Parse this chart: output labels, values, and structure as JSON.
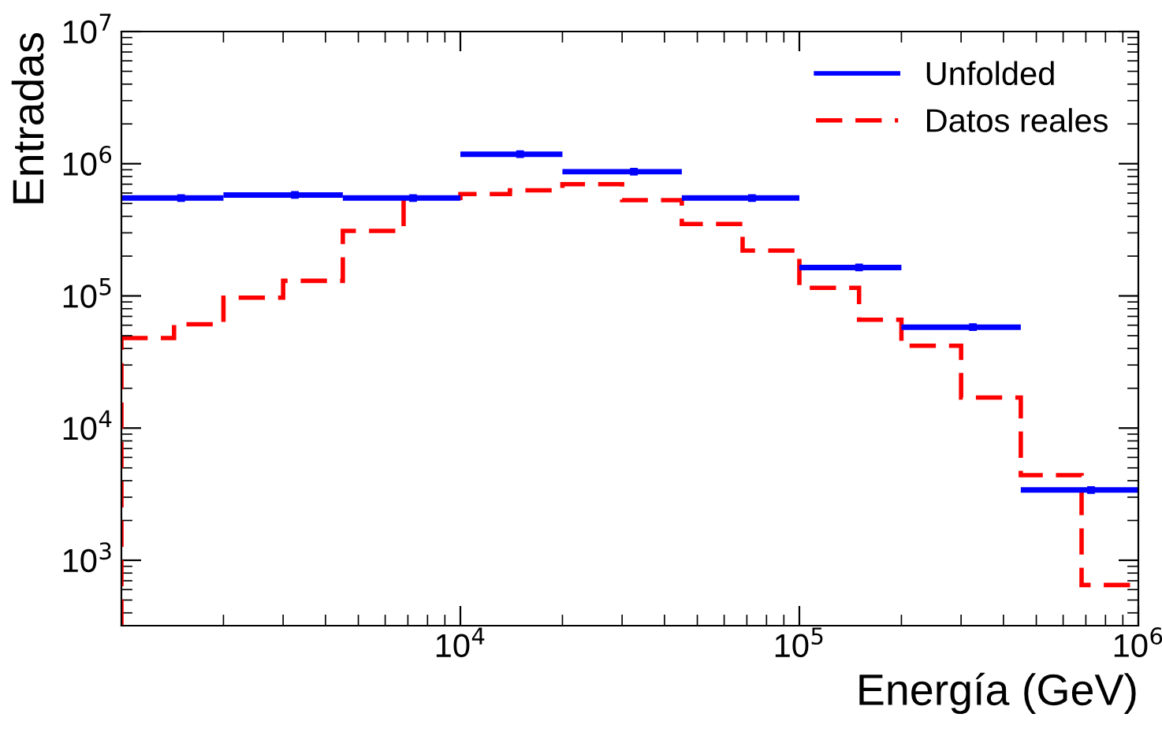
{
  "chart_data": {
    "type": "histogram",
    "xlabel": "Energía (GeV)",
    "ylabel": "Entradas",
    "log": "xy",
    "xlim": [
      1000,
      1000000
    ],
    "ylim": [
      320,
      10000000
    ],
    "xticks": [
      {
        "value": 10000,
        "label": "10$^{4}$"
      },
      {
        "value": 100000,
        "label": "10$^{5}$"
      },
      {
        "value": 1000000,
        "label": "10$^{6}$"
      }
    ],
    "yticks": [
      {
        "value": 1000,
        "label": "10$^{3}$"
      },
      {
        "value": 10000,
        "label": "10$^{4}$"
      },
      {
        "value": 100000,
        "label": "10$^{5}$"
      },
      {
        "value": 1000000,
        "label": "10$^{6}$"
      },
      {
        "value": 10000000,
        "label": "10$^{7}$"
      }
    ],
    "legend": "top right",
    "grid": false,
    "series": [
      {
        "name": "Unfolded",
        "type": "scatter",
        "color": "#0000ff",
        "marker": "square",
        "x": [
          1500,
          3250,
          7250,
          15000,
          32500,
          72500,
          150000,
          325000,
          725000
        ],
        "values": [
          550000,
          580000,
          550000,
          1180000,
          870000,
          550000,
          164000,
          58000,
          3400
        ],
        "xerrors": [
          [
            1000,
            2000
          ],
          [
            2000,
            4500
          ],
          [
            4500,
            10000
          ],
          [
            10000,
            20000
          ],
          [
            20000,
            45000
          ],
          [
            45000,
            100000
          ],
          [
            100000,
            200000
          ],
          [
            200000,
            450000
          ],
          [
            450000,
            1000000
          ]
        ]
      },
      {
        "name": "Datos reales",
        "type": "histogram",
        "color": "#ff0000",
        "line_style": "dashed",
        "bins": [
          1000,
          1430,
          2000,
          3000,
          4500,
          6800,
          10000,
          14000,
          20000,
          30000,
          45000,
          68000,
          100000,
          150000,
          200000,
          300000,
          450000,
          680000,
          1000000
        ],
        "values": [
          48000,
          61000,
          97000,
          130000,
          310000,
          550000,
          590000,
          630000,
          700000,
          530000,
          350000,
          220000,
          115000,
          66000,
          42000,
          17000,
          4400,
          650
        ]
      }
    ]
  }
}
